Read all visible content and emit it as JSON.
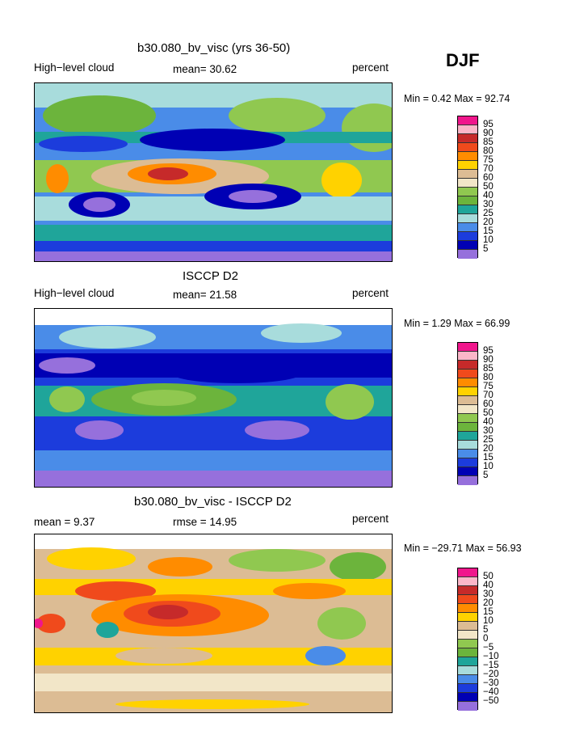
{
  "season": "DJF",
  "panels": [
    {
      "title": "b30.080_bv_visc (yrs 36-50)",
      "left_label": "High−level cloud",
      "center_label": "mean=  30.62",
      "right_label": "percent",
      "minmax": "Min =    0.42  Max =   92.74",
      "colorbar": {
        "labels": [
          "95",
          "90",
          "85",
          "80",
          "75",
          "70",
          "60",
          "50",
          "40",
          "30",
          "25",
          "20",
          "15",
          "10",
          "5"
        ],
        "colors": [
          "#f0168c",
          "#fbb6c8",
          "#c62a2a",
          "#f04a1c",
          "#ff8c00",
          "#ffd200",
          "#dcbc94",
          "#f2e6c8",
          "#90c850",
          "#6cb43c",
          "#1fa59a",
          "#a8dcdc",
          "#4a8ce8",
          "#1c3cdc",
          "#0000b4",
          "#9670dc"
        ]
      }
    },
    {
      "title": "ISCCP D2",
      "left_label": "High−level cloud",
      "center_label": "mean=  21.58",
      "right_label": "percent",
      "minmax": "Min =    1.29  Max =   66.99",
      "colorbar": {
        "labels": [
          "95",
          "90",
          "85",
          "80",
          "75",
          "70",
          "60",
          "50",
          "40",
          "30",
          "25",
          "20",
          "15",
          "10",
          "5"
        ],
        "colors": [
          "#f0168c",
          "#fbb6c8",
          "#c62a2a",
          "#f04a1c",
          "#ff8c00",
          "#ffd200",
          "#dcbc94",
          "#f2e6c8",
          "#90c850",
          "#6cb43c",
          "#1fa59a",
          "#a8dcdc",
          "#4a8ce8",
          "#1c3cdc",
          "#0000b4",
          "#9670dc"
        ]
      }
    },
    {
      "title": "b30.080_bv_visc - ISCCP D2",
      "left_label": "mean =    9.37",
      "center_label": "rmse =   14.95",
      "right_label": "percent",
      "minmax": "Min = −29.71  Max =   56.93",
      "colorbar": {
        "labels": [
          "50",
          "40",
          "30",
          "20",
          "15",
          "10",
          "5",
          "0",
          "−5",
          "−10",
          "−15",
          "−20",
          "−30",
          "−40",
          "−50"
        ],
        "colors": [
          "#f0168c",
          "#fbb6c8",
          "#c62a2a",
          "#f04a1c",
          "#ff8c00",
          "#ffd200",
          "#dcbc94",
          "#f2e6c8",
          "#90c850",
          "#6cb43c",
          "#1fa59a",
          "#a8dcdc",
          "#4a8ce8",
          "#1c3cdc",
          "#0000b4",
          "#9670dc"
        ]
      }
    }
  ]
}
